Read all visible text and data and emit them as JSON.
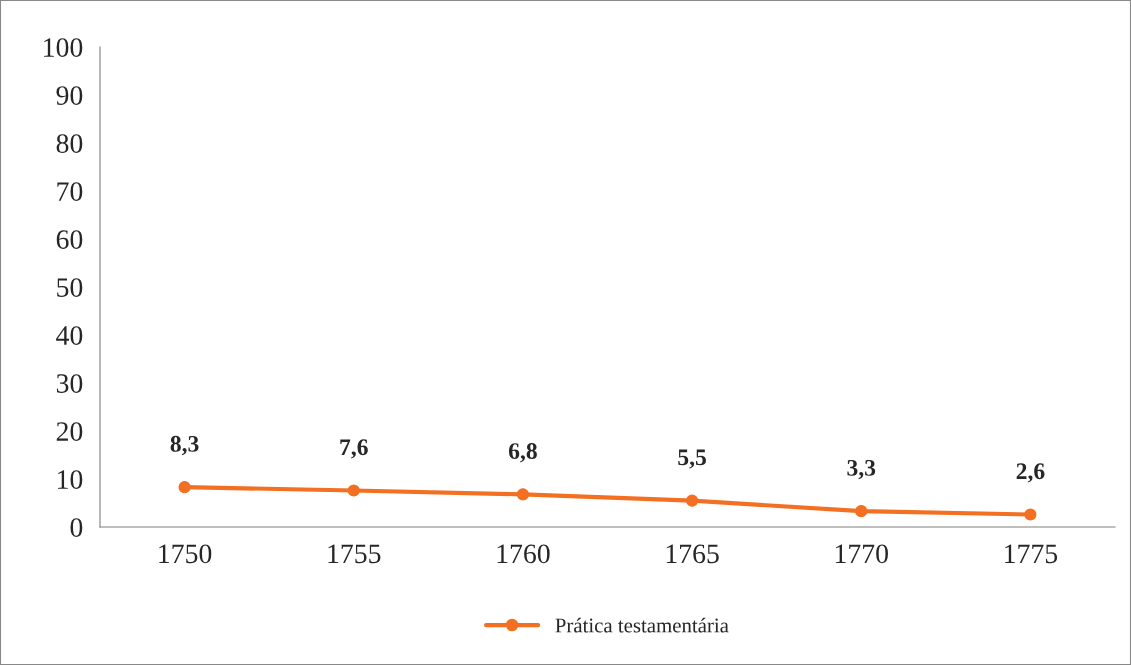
{
  "chart_data": {
    "type": "line",
    "categories": [
      "1750",
      "1755",
      "1760",
      "1765",
      "1770",
      "1775"
    ],
    "series": [
      {
        "name": "Prática testamentária",
        "color": "#f36f21",
        "values": [
          8.3,
          7.6,
          6.8,
          5.5,
          3.3,
          2.6
        ],
        "value_labels": [
          "8,3",
          "7,6",
          "6,8",
          "5,5",
          "3,3",
          "2,6"
        ]
      }
    ],
    "ylim": [
      0,
      100
    ],
    "yticks": [
      0,
      10,
      20,
      30,
      40,
      50,
      60,
      70,
      80,
      90,
      100
    ],
    "grid": false,
    "legend": "bottom",
    "marker": "circle",
    "line_style": "solid"
  }
}
